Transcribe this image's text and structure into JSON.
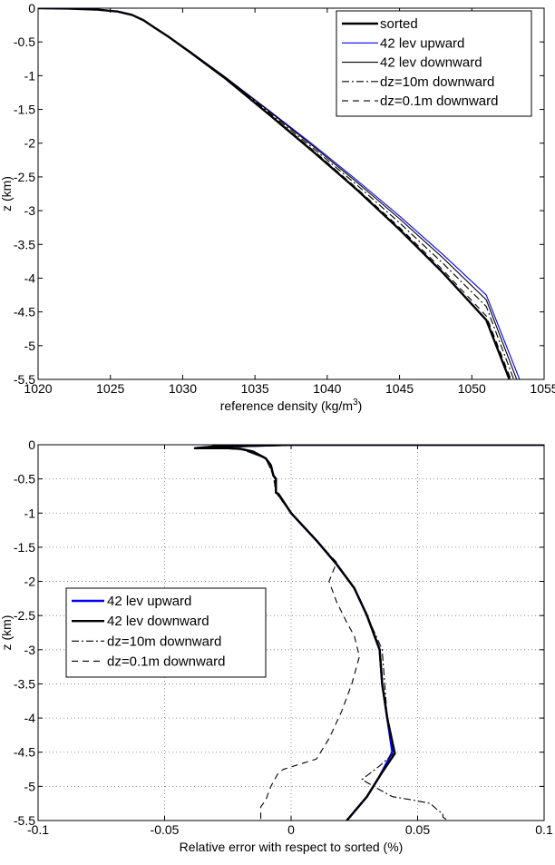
{
  "chart_data": [
    {
      "type": "line",
      "xlabel": "reference density (kg/m",
      "xlabel_sup": "3",
      "xlabel_end": ")",
      "ylabel": "z (km)",
      "xlim": [
        1020,
        1055
      ],
      "ylim": [
        -5.5,
        0
      ],
      "xticks": [
        1020,
        1025,
        1030,
        1035,
        1040,
        1045,
        1050,
        1055
      ],
      "yticks": [
        0,
        -0.5,
        -1,
        -1.5,
        -2,
        -2.5,
        -3,
        -3.5,
        -4,
        -4.5,
        -5,
        -5.5
      ],
      "xtick_labels": [
        "1020",
        "1025",
        "1030",
        "1035",
        "1040",
        "1045",
        "1050",
        "1055"
      ],
      "ytick_labels": [
        "0",
        "-0.5",
        "-1",
        "-1.5",
        "-2",
        "-2.5",
        "-3",
        "-3.5",
        "-4",
        "-4.5",
        "-5",
        "-5.5"
      ],
      "grid": false,
      "legend_position": "top-right",
      "series": [
        {
          "name": "sorted",
          "color": "#000000",
          "style": "solid-thick",
          "x": [
            1020.0,
            1022.0,
            1024.0,
            1025.5,
            1026.5,
            1027.3,
            1028.0,
            1029.0,
            1030.5,
            1033.0,
            1036.0,
            1039.0,
            1042.0,
            1045.0,
            1048.0,
            1051.0,
            1052.6
          ],
          "y": [
            0.0,
            -0.005,
            -0.02,
            -0.05,
            -0.1,
            -0.18,
            -0.28,
            -0.42,
            -0.65,
            -1.05,
            -1.58,
            -2.12,
            -2.68,
            -3.28,
            -3.92,
            -4.62,
            -5.5
          ]
        },
        {
          "name": "42 lev upward",
          "color": "#0000ff",
          "style": "solid-thin",
          "x": [
            1020.0,
            1022.0,
            1024.0,
            1025.5,
            1026.5,
            1027.3,
            1028.0,
            1029.0,
            1030.5,
            1033.0,
            1036.0,
            1039.0,
            1042.0,
            1045.0,
            1048.0,
            1051.0,
            1053.3
          ],
          "y": [
            0.0,
            -0.005,
            -0.02,
            -0.05,
            -0.1,
            -0.18,
            -0.28,
            -0.42,
            -0.64,
            -1.03,
            -1.52,
            -2.02,
            -2.54,
            -3.08,
            -3.65,
            -4.25,
            -5.5
          ]
        },
        {
          "name": "42 lev downward",
          "color": "#000000",
          "style": "solid-thin",
          "x": [
            1020.0,
            1022.0,
            1024.0,
            1025.5,
            1026.5,
            1027.3,
            1028.0,
            1029.0,
            1030.5,
            1033.0,
            1036.0,
            1039.0,
            1042.0,
            1045.0,
            1048.0,
            1051.0,
            1053.1
          ],
          "y": [
            0.0,
            -0.005,
            -0.02,
            -0.05,
            -0.1,
            -0.18,
            -0.28,
            -0.42,
            -0.64,
            -1.03,
            -1.53,
            -2.04,
            -2.57,
            -3.12,
            -3.7,
            -4.32,
            -5.5
          ]
        },
        {
          "name": "dz=10m downward",
          "color": "#000000",
          "style": "dashdot",
          "x": [
            1020.0,
            1022.0,
            1024.0,
            1025.5,
            1026.5,
            1027.3,
            1028.0,
            1029.0,
            1030.5,
            1033.0,
            1036.0,
            1039.0,
            1042.0,
            1045.0,
            1048.0,
            1051.0,
            1052.9
          ],
          "y": [
            0.0,
            -0.005,
            -0.02,
            -0.05,
            -0.1,
            -0.18,
            -0.28,
            -0.42,
            -0.64,
            -1.04,
            -1.55,
            -2.07,
            -2.61,
            -3.18,
            -3.78,
            -4.42,
            -5.5
          ]
        },
        {
          "name": "dz=0.1m downward",
          "color": "#000000",
          "style": "dashed",
          "x": [
            1020.0,
            1022.0,
            1024.0,
            1025.5,
            1026.5,
            1027.3,
            1028.0,
            1029.0,
            1030.5,
            1033.0,
            1036.0,
            1039.0,
            1042.0,
            1045.0,
            1048.0,
            1051.0,
            1052.7
          ],
          "y": [
            0.0,
            -0.005,
            -0.02,
            -0.05,
            -0.1,
            -0.18,
            -0.28,
            -0.42,
            -0.65,
            -1.05,
            -1.57,
            -2.1,
            -2.66,
            -3.25,
            -3.88,
            -4.56,
            -5.5
          ]
        }
      ]
    },
    {
      "type": "line",
      "xlabel": "Relative error with respect to sorted (%)",
      "ylabel": "z (km)",
      "xlim": [
        -0.1,
        0.1
      ],
      "ylim": [
        -5.5,
        0
      ],
      "xticks": [
        -0.1,
        -0.05,
        0,
        0.05,
        0.1
      ],
      "yticks": [
        0,
        -0.5,
        -1,
        -1.5,
        -2,
        -2.5,
        -3,
        -3.5,
        -4,
        -4.5,
        -5,
        -5.5
      ],
      "xtick_labels": [
        "-0.1",
        "-0.05",
        "0",
        "0.05",
        "0.1"
      ],
      "ytick_labels": [
        "0",
        "-0.5",
        "-1",
        "-1.5",
        "-2",
        "-2.5",
        "-3",
        "-3.5",
        "-4",
        "-4.5",
        "-5",
        "-5.5"
      ],
      "grid": true,
      "legend_position": "middle-left",
      "series": [
        {
          "name": "42 lev upward",
          "color": "#0000ff",
          "style": "solid-thick",
          "x": [
            0.1,
            0.0,
            -0.02,
            -0.03,
            -0.032,
            -0.035,
            -0.038,
            -0.025,
            -0.02,
            -0.015,
            -0.01,
            -0.008,
            -0.007,
            -0.006,
            -0.006,
            -0.005,
            0.0,
            0.01,
            0.018,
            0.025,
            0.03,
            0.035,
            0.036,
            0.038,
            0.04,
            0.035,
            0.03,
            0.022
          ],
          "y": [
            0.0,
            0.0,
            -0.02,
            -0.02,
            -0.03,
            -0.04,
            -0.05,
            -0.05,
            -0.06,
            -0.1,
            -0.2,
            -0.3,
            -0.45,
            -0.5,
            -0.7,
            -0.72,
            -1.0,
            -1.4,
            -1.75,
            -2.1,
            -2.5,
            -3.0,
            -3.5,
            -4.0,
            -4.5,
            -4.85,
            -5.15,
            -5.5
          ]
        },
        {
          "name": "42 lev downward",
          "color": "#000000",
          "style": "solid-thick",
          "x": [
            0.1,
            0.0,
            -0.02,
            -0.03,
            -0.032,
            -0.035,
            -0.038,
            -0.025,
            -0.02,
            -0.015,
            -0.01,
            -0.008,
            -0.007,
            -0.006,
            -0.006,
            -0.005,
            0.0,
            0.01,
            0.018,
            0.025,
            0.03,
            0.035,
            0.036,
            0.038,
            0.041,
            0.035,
            0.03,
            0.022
          ],
          "y": [
            0.0,
            0.0,
            -0.02,
            -0.02,
            -0.03,
            -0.04,
            -0.05,
            -0.05,
            -0.06,
            -0.1,
            -0.2,
            -0.3,
            -0.45,
            -0.5,
            -0.7,
            -0.72,
            -1.0,
            -1.4,
            -1.75,
            -2.1,
            -2.5,
            -3.0,
            -3.5,
            -4.0,
            -4.52,
            -4.85,
            -5.15,
            -5.5
          ]
        },
        {
          "name": "dz=10m downward",
          "color": "#000000",
          "style": "dashdot",
          "x": [
            0.1,
            0.0,
            -0.02,
            -0.03,
            -0.038,
            -0.02,
            -0.01,
            -0.007,
            -0.006,
            0.0,
            0.01,
            0.018,
            0.025,
            0.03,
            0.036,
            0.037,
            0.038,
            0.041,
            0.035,
            0.028,
            0.035,
            0.04,
            0.048,
            0.055,
            0.058,
            0.06,
            0.06,
            0.062
          ],
          "y": [
            0.0,
            0.0,
            -0.02,
            -0.02,
            -0.05,
            -0.06,
            -0.2,
            -0.45,
            -0.7,
            -1.0,
            -1.4,
            -1.75,
            -2.1,
            -2.5,
            -3.0,
            -3.5,
            -4.0,
            -4.5,
            -4.7,
            -4.9,
            -5.05,
            -5.15,
            -5.2,
            -5.25,
            -5.35,
            -5.4,
            -5.45,
            -5.5
          ]
        },
        {
          "name": "dz=0.1m downward",
          "color": "#000000",
          "style": "dashed",
          "x": [
            0.1,
            0.0,
            -0.02,
            -0.03,
            -0.038,
            -0.02,
            -0.01,
            -0.007,
            -0.006,
            0.0,
            0.01,
            0.018,
            0.015,
            0.018,
            0.022,
            0.025,
            0.027,
            0.024,
            0.02,
            0.015,
            0.01,
            -0.003,
            -0.005,
            -0.008,
            -0.01,
            -0.012,
            -0.012,
            -0.03
          ],
          "y": [
            0.0,
            0.0,
            -0.02,
            -0.02,
            -0.05,
            -0.06,
            -0.2,
            -0.45,
            -0.7,
            -1.0,
            -1.4,
            -1.72,
            -2.0,
            -2.3,
            -2.6,
            -2.8,
            -3.1,
            -3.5,
            -3.9,
            -4.3,
            -4.6,
            -4.75,
            -4.8,
            -5.0,
            -5.2,
            -5.3,
            -5.5,
            -5.5
          ]
        }
      ]
    }
  ]
}
